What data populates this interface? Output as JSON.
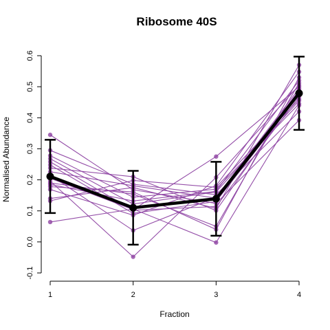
{
  "chart_data": {
    "type": "line",
    "title": "Ribosome 40S",
    "xlabel": "Fraction",
    "ylabel": "Normalised Abundance",
    "x": [
      1,
      2,
      3,
      4
    ],
    "xlim": [
      1,
      4
    ],
    "ylim": [
      -0.1,
      0.6
    ],
    "x_ticks": [
      "1",
      "2",
      "3",
      "4"
    ],
    "y_ticks": [
      "-0.1",
      "0.0",
      "0.1",
      "0.2",
      "0.3",
      "0.4",
      "0.5",
      "0.6"
    ],
    "y_tick_values": [
      -0.1,
      0.0,
      0.1,
      0.2,
      0.3,
      0.4,
      0.5,
      0.6
    ],
    "grid": false,
    "colors": {
      "profiles": "#8e44a3",
      "mean": "#000000",
      "error_bars": "#000000"
    },
    "profiles": [
      [
        0.345,
        0.168,
        0.124,
        0.392
      ],
      [
        0.295,
        0.186,
        0.152,
        0.42
      ],
      [
        0.278,
        0.144,
        0.17,
        0.445
      ],
      [
        0.268,
        0.122,
        0.161,
        0.455
      ],
      [
        0.258,
        0.102,
        0.114,
        0.468
      ],
      [
        0.248,
        0.092,
        0.13,
        0.473
      ],
      [
        0.238,
        0.21,
        0.101,
        0.482
      ],
      [
        0.226,
        0.181,
        0.141,
        0.488
      ],
      [
        0.215,
        0.037,
        0.144,
        0.494
      ],
      [
        0.205,
        0.104,
        0.275,
        0.5
      ],
      [
        0.196,
        -0.048,
        0.208,
        0.505
      ],
      [
        0.19,
        0.154,
        0.05,
        0.512
      ],
      [
        0.185,
        0.132,
        0.163,
        0.52
      ],
      [
        0.178,
        0.161,
        0.04,
        0.53
      ],
      [
        0.169,
        0.086,
        0.181,
        0.548
      ],
      [
        0.14,
        0.175,
        0.108,
        0.57
      ],
      [
        0.132,
        0.198,
        0.176,
        0.46
      ],
      [
        0.064,
        0.106,
        -0.002,
        0.44
      ]
    ],
    "series": [
      {
        "values": [
          0.211,
          0.11,
          0.139,
          0.479
        ],
        "error": [
          0.118,
          0.119,
          0.119,
          0.118
        ]
      }
    ]
  }
}
